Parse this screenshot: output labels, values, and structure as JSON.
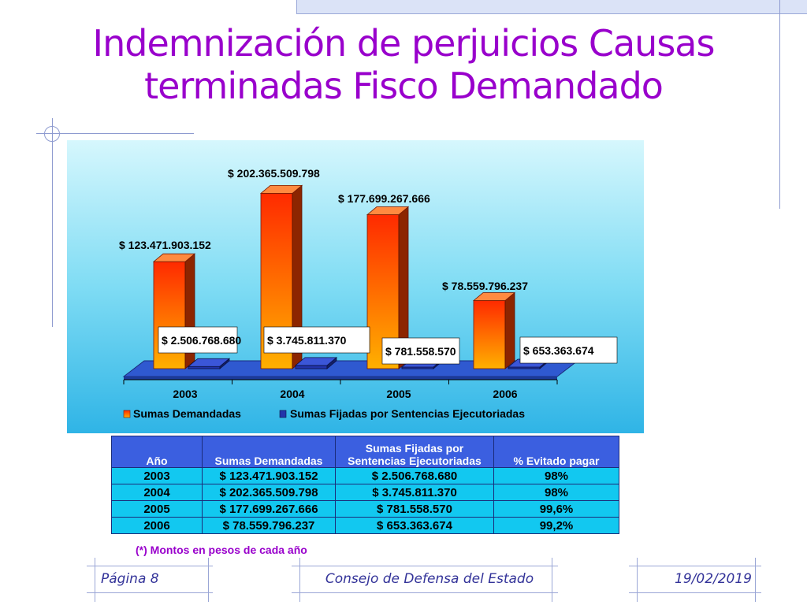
{
  "title": "Indemnización de perjuicios Causas terminadas Fisco Demandado",
  "chart_data": {
    "type": "bar",
    "categories": [
      "2003",
      "2004",
      "2005",
      "2006"
    ],
    "series": [
      {
        "name": "Sumas Demandadas",
        "values": [
          123471903152,
          202365509798,
          177699267666,
          78559796237
        ],
        "labels": [
          "$ 123.471.903.152",
          "$ 202.365.509.798",
          "$ 177.699.267.666",
          "$ 78.559.796.237"
        ],
        "color": "#ff4400"
      },
      {
        "name": "Sumas Fijadas por Sentencias Ejecutoriadas",
        "values": [
          2506768680,
          3745811370,
          781558570,
          653363674
        ],
        "labels": [
          "$ 2.506.768.680",
          "$ 3.745.811.370",
          "$ 781.558.570",
          "$ 653.363.674"
        ],
        "color": "#2233aa"
      }
    ],
    "ylim": [
      0,
      220000000000
    ],
    "legend_position": "bottom"
  },
  "table": {
    "headers": [
      "Año",
      "Sumas Demandadas",
      "Sumas Fijadas por",
      "Sentencias Ejecutoriadas",
      "% Evitado pagar"
    ],
    "rows": [
      [
        "2003",
        "$ 123.471.903.152",
        "$ 2.506.768.680",
        "98%"
      ],
      [
        "2004",
        "$ 202.365.509.798",
        "$ 3.745.811.370",
        "98%"
      ],
      [
        "2005",
        "$ 177.699.267.666",
        "$ 781.558.570",
        "99,6%"
      ],
      [
        "2006",
        "$ 78.559.796.237",
        "$ 653.363.674",
        "99,2%"
      ]
    ]
  },
  "note": "(*) Montos en pesos de cada año",
  "footer": {
    "page": "Página 8",
    "org": "Consejo de Defensa del Estado",
    "date": "19/02/2019"
  }
}
